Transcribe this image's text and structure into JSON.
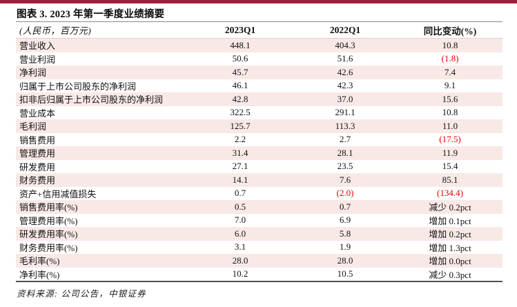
{
  "figure": {
    "title": "图表 3. 2023 年第一季度业绩摘要",
    "source": "资料来源: 公司公告，中银证券"
  },
  "colors": {
    "accent_bar": "#A21C3C",
    "row_stripe": "#F8E9E7",
    "negative": "#E60000"
  },
  "table": {
    "unit_label": "(人民币，百万元)",
    "columns": [
      "2023Q1",
      "2022Q1",
      "同比变动(%)"
    ],
    "rows": [
      {
        "label": "营业收入",
        "values": [
          "448.1",
          "404.3",
          "10.8"
        ],
        "negatives": [
          false,
          false,
          false
        ]
      },
      {
        "label": "营业利润",
        "values": [
          "50.6",
          "51.6",
          "(1.8)"
        ],
        "negatives": [
          false,
          false,
          true
        ]
      },
      {
        "label": "净利润",
        "values": [
          "45.7",
          "42.6",
          "7.4"
        ],
        "negatives": [
          false,
          false,
          false
        ]
      },
      {
        "label": "归属于上市公司股东的净利润",
        "values": [
          "46.1",
          "42.3",
          "9.1"
        ],
        "negatives": [
          false,
          false,
          false
        ]
      },
      {
        "label": "扣非后归属于上市公司股东的净利润",
        "values": [
          "42.8",
          "37.0",
          "15.6"
        ],
        "negatives": [
          false,
          false,
          false
        ]
      },
      {
        "label": "营业成本",
        "values": [
          "322.5",
          "291.1",
          "10.8"
        ],
        "negatives": [
          false,
          false,
          false
        ]
      },
      {
        "label": "毛利润",
        "values": [
          "125.7",
          "113.3",
          "11.0"
        ],
        "negatives": [
          false,
          false,
          false
        ]
      },
      {
        "label": "销售费用",
        "values": [
          "2.2",
          "2.7",
          "(17.5)"
        ],
        "negatives": [
          false,
          false,
          true
        ]
      },
      {
        "label": "管理费用",
        "values": [
          "31.4",
          "28.1",
          "11.9"
        ],
        "negatives": [
          false,
          false,
          false
        ]
      },
      {
        "label": "研发费用",
        "values": [
          "27.1",
          "23.5",
          "15.4"
        ],
        "negatives": [
          false,
          false,
          false
        ]
      },
      {
        "label": "财务费用",
        "values": [
          "14.1",
          "7.6",
          "85.1"
        ],
        "negatives": [
          false,
          false,
          false
        ]
      },
      {
        "label": "资产+信用减值损失",
        "values": [
          "0.7",
          "(2.0)",
          "(134.4)"
        ],
        "negatives": [
          false,
          true,
          true
        ]
      },
      {
        "label": "销售费用率(%)",
        "values": [
          "0.5",
          "0.7",
          "减少 0.2pct"
        ],
        "negatives": [
          false,
          false,
          false
        ]
      },
      {
        "label": "管理费用率(%)",
        "values": [
          "7.0",
          "6.9",
          "增加 0.1pct"
        ],
        "negatives": [
          false,
          false,
          false
        ]
      },
      {
        "label": "研发费用率(%)",
        "values": [
          "6.0",
          "5.8",
          "增加 0.2pct"
        ],
        "negatives": [
          false,
          false,
          false
        ]
      },
      {
        "label": "财务费用率(%)",
        "values": [
          "3.1",
          "1.9",
          "增加 1.3pct"
        ],
        "negatives": [
          false,
          false,
          false
        ]
      },
      {
        "label": "毛利率(%)",
        "values": [
          "28.0",
          "28.0",
          "增加 0.0pct"
        ],
        "negatives": [
          false,
          false,
          false
        ]
      },
      {
        "label": "净利率(%)",
        "values": [
          "10.2",
          "10.5",
          "减少 0.3pct"
        ],
        "negatives": [
          false,
          false,
          false
        ]
      }
    ]
  }
}
